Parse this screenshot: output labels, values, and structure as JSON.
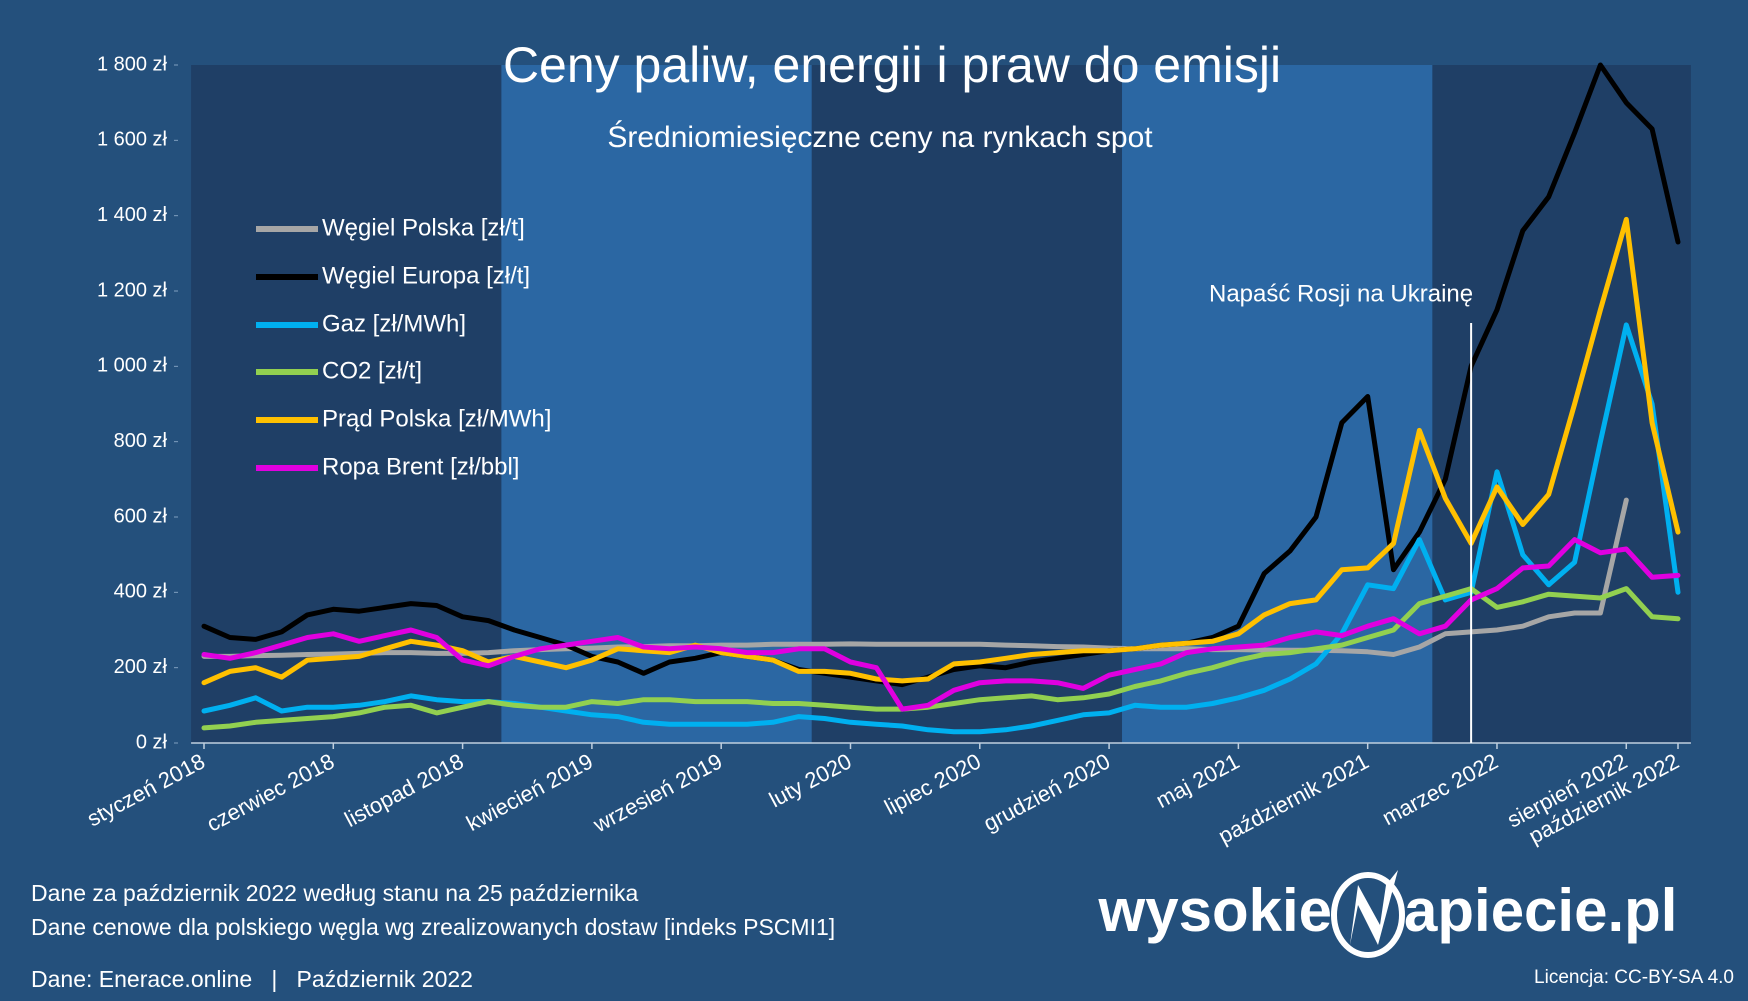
{
  "chart_data": {
    "type": "line",
    "title": "Ceny paliw, energii i praw do emisji",
    "subtitle": "Średniomiesięczne ceny na rynkach spot",
    "categories": [
      "styczeń 2018",
      null,
      null,
      null,
      null,
      "czerwiec 2018",
      null,
      null,
      null,
      null,
      "listopad 2018",
      null,
      null,
      null,
      null,
      "kwiecień 2019",
      null,
      null,
      null,
      null,
      "wrzesień 2019",
      null,
      null,
      null,
      null,
      "luty 2020",
      null,
      null,
      null,
      null,
      "lipiec 2020",
      null,
      null,
      null,
      null,
      "grudzień 2020",
      null,
      null,
      null,
      null,
      "maj 2021",
      null,
      null,
      null,
      null,
      "październik 2021",
      null,
      null,
      null,
      null,
      "marzec 2022",
      null,
      null,
      null,
      null,
      "sierpień 2022",
      null,
      "październik 2022"
    ],
    "series": [
      {
        "name": "Węgiel Polska [zł/t]",
        "color": "#a6a6a6",
        "values": [
          230,
          230,
          232,
          233,
          235,
          236,
          238,
          240,
          240,
          238,
          238,
          240,
          245,
          248,
          250,
          252,
          255,
          256,
          258,
          258,
          260,
          260,
          262,
          262,
          262,
          263,
          262,
          262,
          262,
          262,
          262,
          260,
          258,
          256,
          255,
          252,
          250,
          250,
          250,
          248,
          248,
          247,
          246,
          246,
          245,
          242,
          235,
          255,
          290,
          295,
          300,
          310,
          335,
          345,
          345,
          645,
          null,
          null
        ]
      },
      {
        "name": "Węgiel Europa [zł/t]",
        "color": "#000000",
        "values": [
          310,
          280,
          275,
          295,
          340,
          355,
          350,
          360,
          370,
          365,
          335,
          325,
          300,
          280,
          260,
          230,
          215,
          185,
          215,
          225,
          240,
          230,
          220,
          195,
          185,
          175,
          165,
          155,
          175,
          195,
          205,
          200,
          215,
          225,
          235,
          245,
          250,
          260,
          265,
          280,
          310,
          450,
          510,
          600,
          850,
          920,
          460,
          560,
          700,
          1000,
          1150,
          1360,
          1450,
          1620,
          1800,
          1700,
          1630,
          1330
        ]
      },
      {
        "name": "Gaz [zł/MWh]",
        "color": "#00b0f0",
        "values": [
          85,
          100,
          120,
          85,
          95,
          95,
          100,
          110,
          125,
          115,
          110,
          110,
          105,
          95,
          85,
          75,
          70,
          55,
          50,
          50,
          50,
          50,
          55,
          70,
          65,
          55,
          50,
          45,
          35,
          30,
          30,
          35,
          45,
          60,
          75,
          80,
          100,
          95,
          95,
          105,
          120,
          140,
          170,
          210,
          290,
          420,
          410,
          540,
          380,
          400,
          720,
          500,
          420,
          480,
          800,
          1110,
          900,
          400
        ]
      },
      {
        "name": "CO2 [zł/t]",
        "color": "#92d050",
        "values": [
          40,
          45,
          55,
          60,
          65,
          70,
          80,
          95,
          100,
          80,
          95,
          110,
          100,
          95,
          95,
          110,
          105,
          115,
          115,
          110,
          110,
          110,
          105,
          105,
          100,
          95,
          90,
          90,
          95,
          105,
          115,
          120,
          125,
          115,
          120,
          130,
          150,
          165,
          185,
          200,
          220,
          235,
          240,
          250,
          260,
          280,
          300,
          370,
          390,
          410,
          360,
          375,
          395,
          390,
          385,
          410,
          335,
          330
        ]
      },
      {
        "name": "Prąd Polska [zł/MWh]",
        "color": "#ffc000",
        "values": [
          160,
          190,
          200,
          175,
          220,
          225,
          230,
          250,
          270,
          260,
          245,
          215,
          230,
          215,
          200,
          220,
          250,
          245,
          240,
          260,
          240,
          230,
          220,
          190,
          190,
          185,
          170,
          165,
          170,
          210,
          215,
          225,
          235,
          240,
          245,
          245,
          250,
          260,
          265,
          270,
          290,
          340,
          370,
          380,
          460,
          465,
          530,
          830,
          650,
          530,
          680,
          580,
          660,
          900,
          1150,
          1390,
          850,
          560
        ]
      },
      {
        "name": "Ropa Brent [zł/bbl]",
        "color": "#e000e0",
        "values": [
          235,
          225,
          240,
          260,
          280,
          290,
          270,
          285,
          300,
          280,
          220,
          205,
          230,
          250,
          260,
          270,
          280,
          255,
          250,
          255,
          250,
          240,
          240,
          250,
          250,
          215,
          200,
          90,
          100,
          140,
          160,
          165,
          165,
          160,
          145,
          180,
          195,
          210,
          240,
          250,
          255,
          260,
          280,
          295,
          285,
          310,
          330,
          290,
          310,
          380,
          410,
          465,
          470,
          540,
          505,
          515,
          440,
          445
        ]
      }
    ],
    "ylim": [
      0,
      1800
    ],
    "yticks": [
      {
        "value": 0,
        "label": "0 zł"
      },
      {
        "value": 200,
        "label": "200 zł"
      },
      {
        "value": 400,
        "label": "400 zł"
      },
      {
        "value": 600,
        "label": "600 zł"
      },
      {
        "value": 800,
        "label": "800 zł"
      },
      {
        "value": 1000,
        "label": "1 000 zł"
      },
      {
        "value": 1200,
        "label": "1 200 zł"
      },
      {
        "value": 1400,
        "label": "1 400 zł"
      },
      {
        "value": 1600,
        "label": "1 600 zł"
      },
      {
        "value": 1800,
        "label": "1 800 zł"
      }
    ],
    "grid": false,
    "legend": "upper left",
    "annotation": {
      "text": "Napaść Rosji na Ukrainę",
      "x": 49
    },
    "notes": [
      "Dane za październik 2022 według stanu na 25 października",
      "Dane cenowe dla polskiego węgla wg zrealizowanych dostaw [indeks PSCMI1]"
    ],
    "source": "Dane: Enerace.online   |   Październik 2022",
    "logo": [
      "wysokie",
      "apiecie.pl"
    ],
    "license": "Licencja: CC-BY-SA 4.0"
  }
}
